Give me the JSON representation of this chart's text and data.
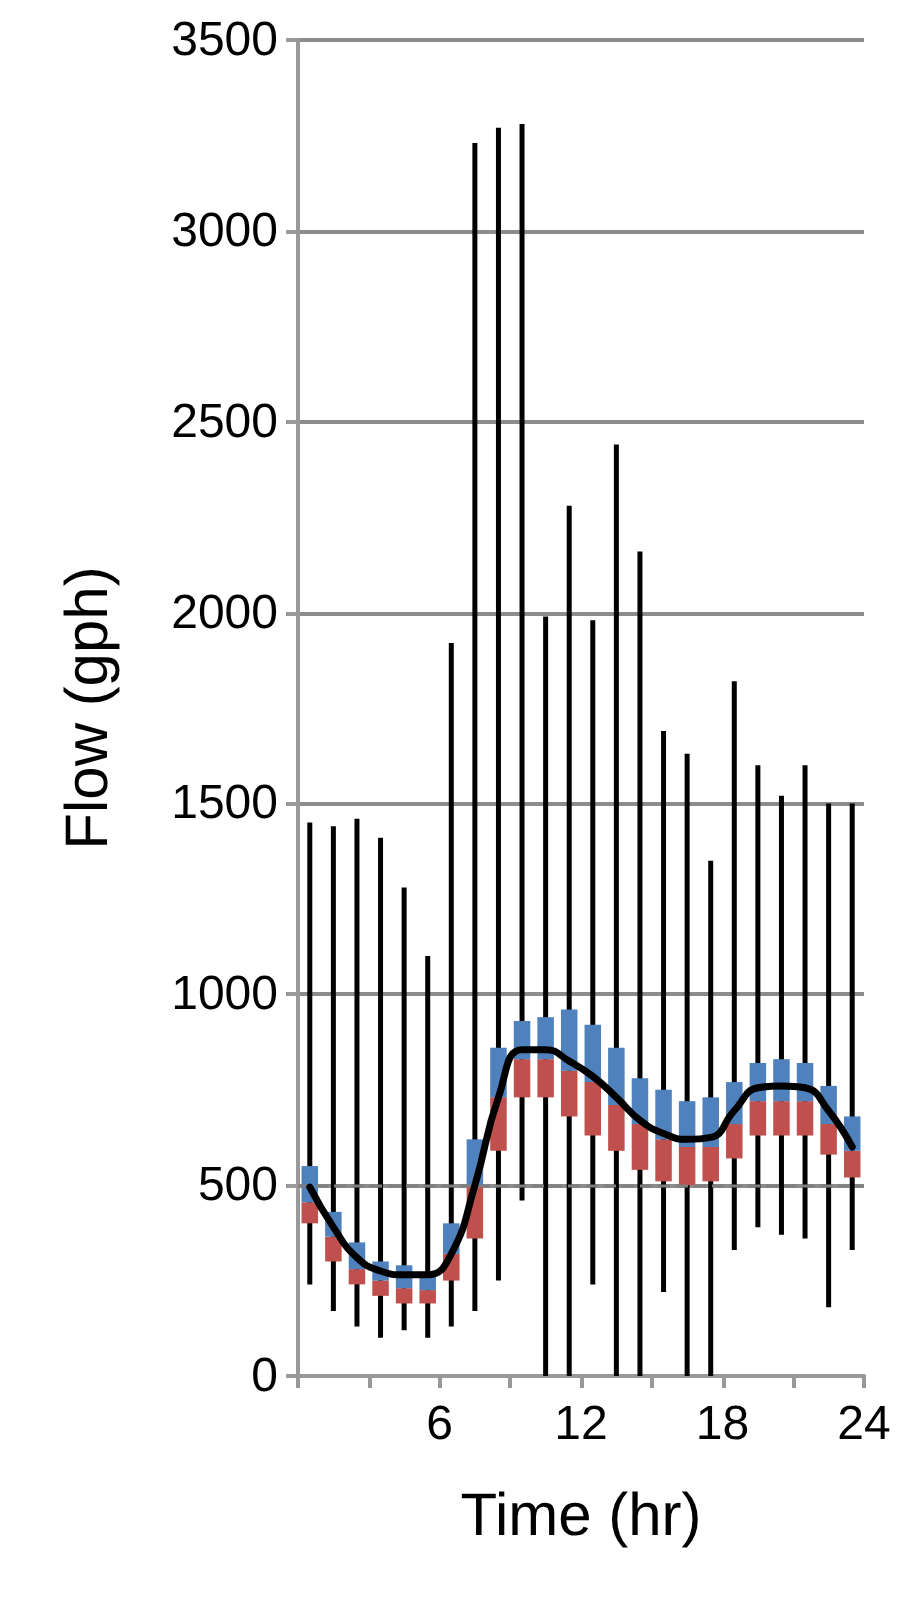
{
  "chart_data": {
    "type": "box",
    "xlabel": "Time (hr)",
    "ylabel": "Flow (gph)",
    "x": [
      0.5,
      1.5,
      2.5,
      3.5,
      4.5,
      5.5,
      6.5,
      7.5,
      8.5,
      9.5,
      10.5,
      11.5,
      12.5,
      13.5,
      14.5,
      15.5,
      16.5,
      17.5,
      18.5,
      19.5,
      20.5,
      21.5,
      22.5,
      23.5
    ],
    "xlim": [
      0,
      24
    ],
    "xticks": [
      {
        "value": 0,
        "label": null
      },
      {
        "value": 3,
        "label": null
      },
      6,
      {
        "value": 9,
        "label": null
      },
      12,
      {
        "value": 15,
        "label": null
      },
      18,
      {
        "value": 21,
        "label": null
      },
      24
    ],
    "ylim": [
      0,
      3500
    ],
    "yticks": [
      0,
      500,
      1000,
      1500,
      2000,
      2500,
      3000,
      3500
    ],
    "grid": "y",
    "series": [
      {
        "color": "#4f81bd",
        "colors": [
          "#c0504d",
          "#c0504d",
          "#c0504d",
          "#c0504d",
          "#c0504d",
          "#c0504d",
          "#c0504d",
          "#c0504d",
          "#c0504d",
          "#c0504d",
          "#c0504d",
          "#c0504d",
          "#c0504d",
          "#c0504d",
          "#c0504d",
          "#c0504d",
          "#c0504d",
          "#c0504d",
          "#c0504d",
          "#c0504d",
          "#c0504d",
          "#c0504d",
          "#c0504d",
          "#c0504d"
        ],
        "boxes": [
          {
            "low": 240,
            "q1": 400,
            "median": 455,
            "q3": 550,
            "high": 1450
          },
          {
            "low": 170,
            "q1": 300,
            "median": 365,
            "q3": 430,
            "high": 1440
          },
          {
            "low": 130,
            "q1": 240,
            "median": 280,
            "q3": 350,
            "high": 1460
          },
          {
            "low": 100,
            "q1": 210,
            "median": 250,
            "q3": 300,
            "high": 1410
          },
          {
            "low": 120,
            "q1": 190,
            "median": 230,
            "q3": 290,
            "high": 1280
          },
          {
            "low": 100,
            "q1": 190,
            "median": 225,
            "q3": 270,
            "high": 1100
          },
          {
            "low": 130,
            "q1": 250,
            "median": 320,
            "q3": 400,
            "high": 1920
          },
          {
            "low": 170,
            "q1": 360,
            "median": 500,
            "q3": 620,
            "high": 3230
          },
          {
            "low": 250,
            "q1": 590,
            "median": 730,
            "q3": 860,
            "high": 3270
          },
          {
            "low": 460,
            "q1": 730,
            "median": 830,
            "q3": 930,
            "high": 3280
          },
          {
            "low": 0,
            "q1": 730,
            "median": 830,
            "q3": 940,
            "high": 1990
          },
          {
            "low": 0,
            "q1": 680,
            "median": 800,
            "q3": 960,
            "high": 2280
          },
          {
            "low": 240,
            "q1": 630,
            "median": 770,
            "q3": 920,
            "high": 1980
          },
          {
            "low": 0,
            "q1": 590,
            "median": 710,
            "q3": 860,
            "high": 2440
          },
          {
            "low": 0,
            "q1": 540,
            "median": 660,
            "q3": 780,
            "high": 2160
          },
          {
            "low": 220,
            "q1": 510,
            "median": 620,
            "q3": 750,
            "high": 1690
          },
          {
            "low": 0,
            "q1": 500,
            "median": 600,
            "q3": 720,
            "high": 1630
          },
          {
            "low": 0,
            "q1": 510,
            "median": 600,
            "q3": 730,
            "high": 1350
          },
          {
            "low": 330,
            "q1": 570,
            "median": 660,
            "q3": 770,
            "high": 1820
          },
          {
            "low": 390,
            "q1": 630,
            "median": 720,
            "q3": 820,
            "high": 1600
          },
          {
            "low": 370,
            "q1": 630,
            "median": 720,
            "q3": 830,
            "high": 1520
          },
          {
            "low": 360,
            "q1": 630,
            "median": 720,
            "q3": 820,
            "high": 1600
          },
          {
            "low": 180,
            "q1": 580,
            "median": 660,
            "q3": 760,
            "high": 1500
          },
          {
            "low": 330,
            "q1": 520,
            "median": 590,
            "q3": 680,
            "high": 1500
          }
        ]
      },
      {
        "type": "line",
        "color": "#000000",
        "x": [
          0.5,
          1.5,
          2.5,
          3.5,
          4.5,
          5.5,
          6.5,
          7.5,
          8.5,
          9.5,
          10.5,
          11.5,
          12.5,
          13.5,
          14.5,
          15.5,
          16.5,
          17.5,
          18.5,
          19.5,
          20.5,
          21.5,
          22.5,
          23.5
        ],
        "values": [
          495,
          390,
          310,
          275,
          265,
          265,
          320,
          500,
          730,
          855,
          855,
          825,
          785,
          730,
          670,
          635,
          620,
          625,
          695,
          755,
          760,
          755,
          695,
          600
        ]
      }
    ],
    "marker": "none",
    "line_style": "solid",
    "ref_lines": [
      {
        "axis": "y",
        "value": 500,
        "label": null,
        "color": "#7f7f7f",
        "line_style": "dashed"
      }
    ]
  }
}
